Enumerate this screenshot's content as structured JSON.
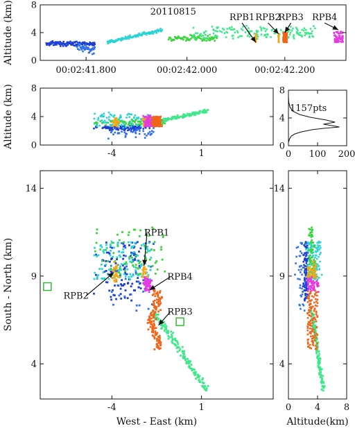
{
  "chart_data": [
    {
      "panel": "time-altitude",
      "type": "scatter",
      "ylabel": "Altitude (km)",
      "xlim": [
        0,
        1
      ],
      "ylim": [
        0,
        8
      ],
      "y_ticks": [
        "0",
        "4",
        "8"
      ],
      "x_tick_labels": [
        "00:02:41.800",
        "00:02:42.000",
        "00:02:42.200"
      ],
      "x_tick_positions": [
        0.15,
        0.48,
        0.8
      ],
      "annotations": [
        {
          "text": "20110815",
          "x": 0.435,
          "y": 6.6
        },
        {
          "text": "RPB1",
          "x": 0.66,
          "y": 5.8,
          "arrow_to": [
            0.705,
            2.6
          ]
        },
        {
          "text": "RPB2",
          "x": 0.745,
          "y": 5.8,
          "arrow_to": [
            0.78,
            3.8
          ]
        },
        {
          "text": "RPB3",
          "x": 0.82,
          "y": 5.8,
          "arrow_to": [
            0.8,
            4.0
          ]
        },
        {
          "text": "RPB4",
          "x": 0.93,
          "y": 5.8,
          "arrow_to": [
            0.975,
            4.4
          ]
        }
      ]
    },
    {
      "panel": "west-east-altitude",
      "type": "scatter",
      "xlabel": "",
      "ylabel": "Altitude (km)",
      "xlim": [
        -8,
        5
      ],
      "ylim": [
        0,
        8
      ],
      "x_ticks": [
        "-4",
        "1"
      ],
      "y_ticks": [
        "0",
        "4",
        "8"
      ]
    },
    {
      "panel": "altitude-histogram",
      "type": "line",
      "annotation": "1157pts",
      "xlim": [
        0,
        200
      ],
      "ylim": [
        0,
        8
      ],
      "x_ticks": [
        "0",
        "100",
        "200"
      ],
      "y_ticks": [
        "0",
        "4",
        "8"
      ],
      "x": [
        0,
        4,
        10,
        22,
        45,
        80,
        120,
        175,
        150,
        120,
        160,
        130,
        75,
        38,
        14,
        5,
        1,
        0
      ],
      "y": [
        0.5,
        1.0,
        1.4,
        1.7,
        2.0,
        2.3,
        2.5,
        2.7,
        2.9,
        3.1,
        3.4,
        3.7,
        4.1,
        4.5,
        5.0,
        5.6,
        6.3,
        7.0
      ]
    },
    {
      "panel": "plan-view",
      "type": "scatter",
      "xlabel": "West - East (km)",
      "ylabel": "South - North (km)",
      "xlim": [
        -8,
        5
      ],
      "ylim": [
        2,
        15
      ],
      "x_ticks": [
        "-4",
        "1"
      ],
      "y_ticks": [
        "4",
        "9",
        "14"
      ],
      "station_markers": [
        [
          -7.6,
          8.4
        ],
        [
          -0.2,
          6.4
        ]
      ],
      "annotations": [
        {
          "text": "RPB1",
          "x": -1.5,
          "y": 11.3,
          "arrow_to": [
            -2.2,
            9.6
          ]
        },
        {
          "text": "RPB2",
          "x": -6.0,
          "y": 7.7,
          "arrow_to": [
            -3.9,
            9.2
          ]
        },
        {
          "text": "RPB4",
          "x": -0.2,
          "y": 8.8,
          "arrow_to": [
            -1.9,
            8.2
          ]
        },
        {
          "text": "RPB3",
          "x": -0.2,
          "y": 6.8,
          "arrow_to": [
            -1.4,
            6.2
          ]
        }
      ]
    },
    {
      "panel": "altitude-north",
      "type": "scatter",
      "xlabel": "Altitude(km)",
      "xlim": [
        0,
        8
      ],
      "ylim": [
        2,
        15
      ],
      "x_ticks": [
        "0",
        "4",
        "8"
      ],
      "y_ticks": [
        "4",
        "9",
        "14"
      ]
    }
  ],
  "colors": {
    "dark_blue": "#1c3fd4",
    "blue": "#2f6ff0",
    "cyan": "#2bd4d4",
    "spring_green": "#3fe88a",
    "green": "#39d43a",
    "orange_yellow": "#f0a818",
    "orange": "#f26418",
    "magenta": "#e43ae4",
    "station": "#2bb32b"
  }
}
